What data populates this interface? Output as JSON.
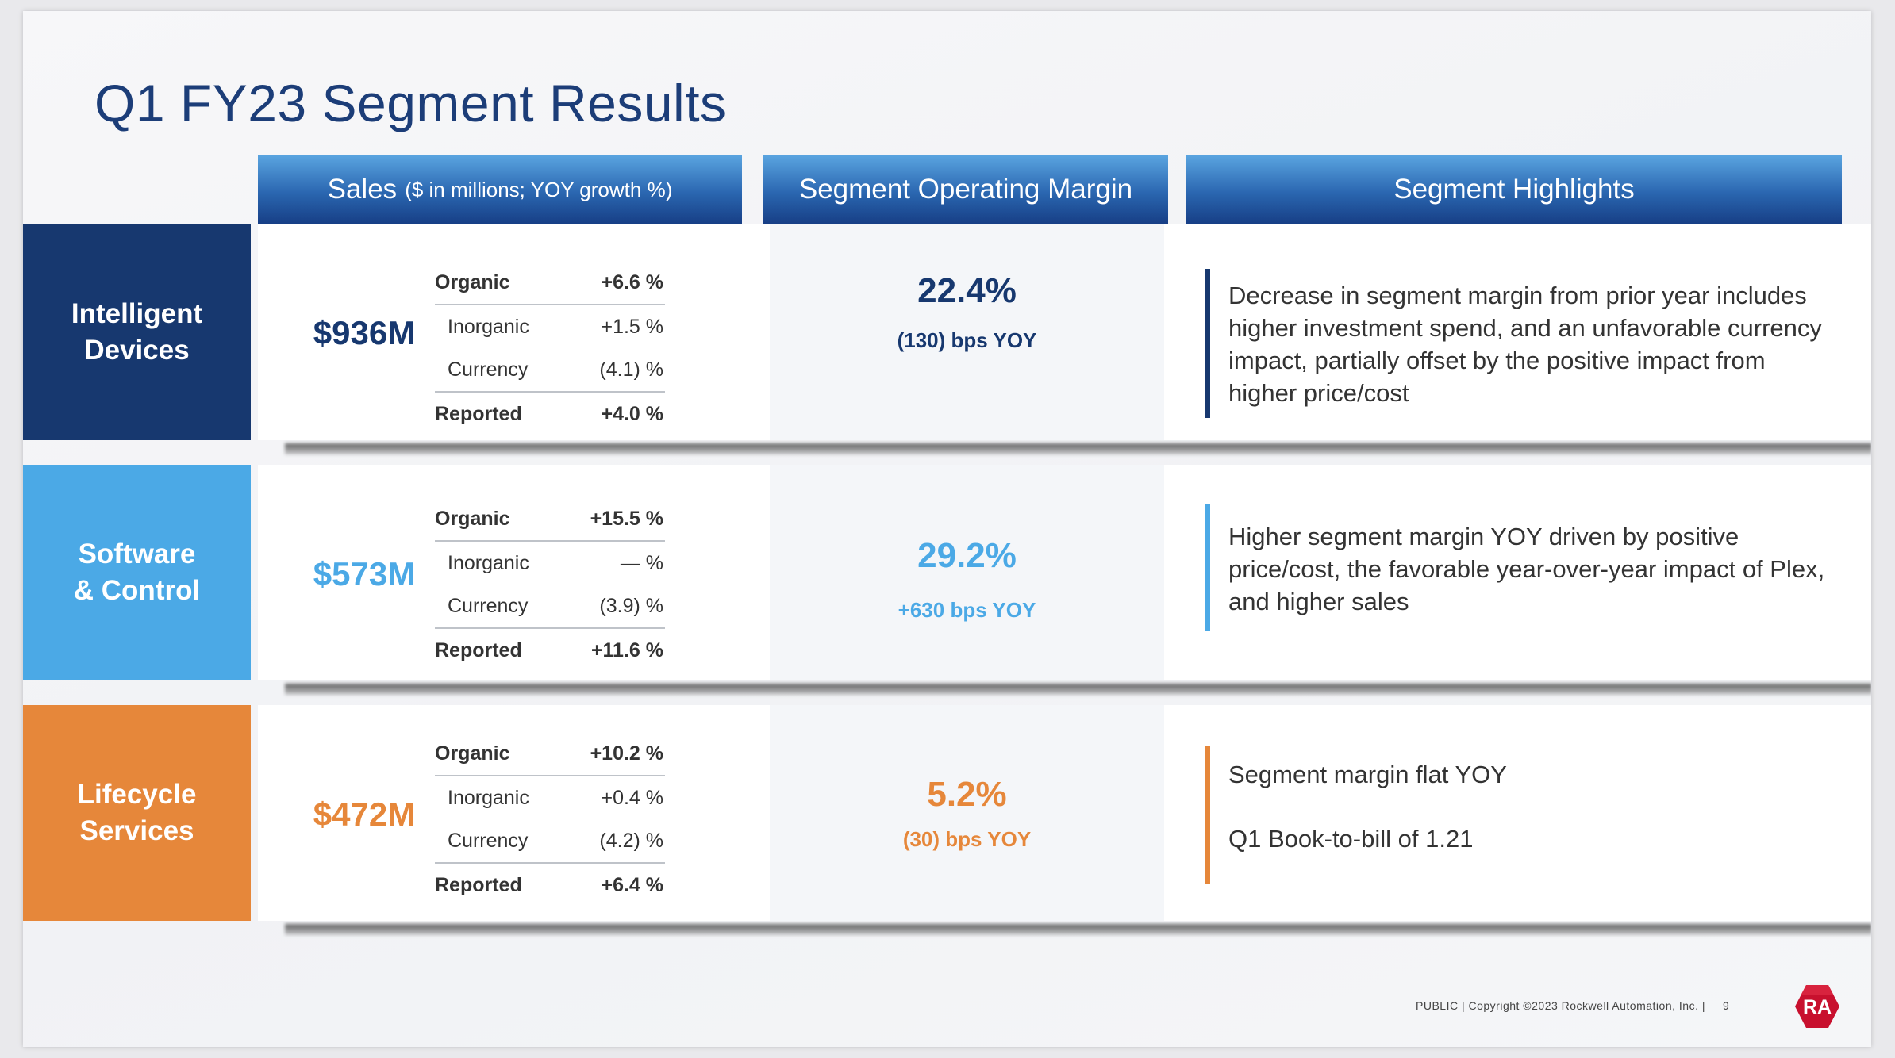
{
  "title": "Q1 FY23 Segment Results",
  "headers": {
    "sales_main": "Sales",
    "sales_sub": "($ in millions; YOY growth %)",
    "margin": "Segment Operating Margin",
    "highlights": "Segment Highlights"
  },
  "segments": [
    {
      "name_line1": "Intelligent",
      "name_line2": "Devices",
      "color": "#17386f",
      "sales": "$936M",
      "growth": [
        {
          "label": "Organic",
          "value": "+6.6 %"
        },
        {
          "label": "Inorganic",
          "value": "+1.5 %"
        },
        {
          "label": "Currency",
          "value": "(4.1) %"
        },
        {
          "label": "Reported",
          "value": "+4.0 %"
        }
      ],
      "margin": "22.4%",
      "margin_change": "(130) bps YOY",
      "highlights": [
        "Decrease in segment margin from prior year includes higher investment spend, and an unfavorable currency impact, partially offset by the positive impact from higher price/cost"
      ]
    },
    {
      "name_line1": "Software",
      "name_line2": "& Control",
      "color": "#4ba9e6",
      "sales": "$573M",
      "growth": [
        {
          "label": "Organic",
          "value": "+15.5 %"
        },
        {
          "label": "Inorganic",
          "value": "— %"
        },
        {
          "label": "Currency",
          "value": "(3.9) %"
        },
        {
          "label": "Reported",
          "value": "+11.6 %"
        }
      ],
      "margin": "29.2%",
      "margin_change": "+630 bps YOY",
      "highlights": [
        "Higher segment margin YOY driven by positive price/cost, the favorable year-over-year impact of Plex, and higher sales"
      ]
    },
    {
      "name_line1": "Lifecycle",
      "name_line2": "Services",
      "color": "#e6873a",
      "sales": "$472M",
      "growth": [
        {
          "label": "Organic",
          "value": "+10.2 %"
        },
        {
          "label": "Inorganic",
          "value": "+0.4 %"
        },
        {
          "label": "Currency",
          "value": "(4.2) %"
        },
        {
          "label": "Reported",
          "value": "+6.4 %"
        }
      ],
      "margin": "5.2%",
      "margin_change": "(30) bps YOY",
      "highlights": [
        "Segment margin flat YOY",
        "Q1 Book-to-bill of 1.21"
      ]
    }
  ],
  "footer": {
    "classification": "PUBLIC",
    "copyright": "Copyright ©2023 Rockwell Automation, Inc.",
    "page_number": "9"
  },
  "logo_text": "RA",
  "logo_color": "#c8102e"
}
